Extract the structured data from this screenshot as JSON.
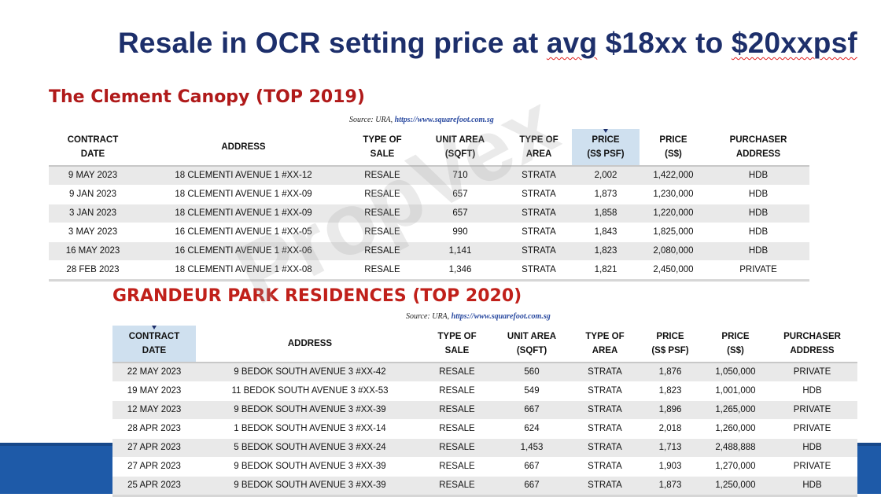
{
  "slide": {
    "title_parts": [
      "Resale in OCR setting price at ",
      "avg",
      " $18xx to ",
      "$20xxpsf"
    ],
    "watermark": "PropVex"
  },
  "colors": {
    "title": "#1d2f6b",
    "heading_red": "#b01a1a",
    "band": "#1e5aa8",
    "header_highlight": "#cfe0ef"
  },
  "clement": {
    "heading": "The Clement Canopy (TOP 2019)",
    "source_label": "Source: URA,",
    "source_link": "https://www.squarefoot.com.sg",
    "headers": [
      [
        "CONTRACT",
        "DATE"
      ],
      [
        "ADDRESS"
      ],
      [
        "TYPE OF",
        "SALE"
      ],
      [
        "UNIT AREA",
        "(SQFT)"
      ],
      [
        "TYPE OF",
        "AREA"
      ],
      [
        "PRICE",
        "(S$ PSF)"
      ],
      [
        "PRICE",
        "(S$)"
      ],
      [
        "PURCHASER",
        "ADDRESS"
      ]
    ],
    "rows": [
      [
        "9 MAY 2023",
        "18 CLEMENTI AVENUE 1 #XX-12",
        "RESALE",
        "710",
        "STRATA",
        "2,002",
        "1,422,000",
        "HDB"
      ],
      [
        "9 JAN 2023",
        "18 CLEMENTI AVENUE 1 #XX-09",
        "RESALE",
        "657",
        "STRATA",
        "1,873",
        "1,230,000",
        "HDB"
      ],
      [
        "3 JAN 2023",
        "18 CLEMENTI AVENUE 1 #XX-09",
        "RESALE",
        "657",
        "STRATA",
        "1,858",
        "1,220,000",
        "HDB"
      ],
      [
        "3 MAY 2023",
        "16 CLEMENTI AVENUE 1 #XX-05",
        "RESALE",
        "990",
        "STRATA",
        "1,843",
        "1,825,000",
        "HDB"
      ],
      [
        "16 MAY 2023",
        "16 CLEMENTI AVENUE 1 #XX-06",
        "RESALE",
        "1,141",
        "STRATA",
        "1,823",
        "2,080,000",
        "HDB"
      ],
      [
        "28 FEB 2023",
        "18 CLEMENTI AVENUE 1 #XX-08",
        "RESALE",
        "1,346",
        "STRATA",
        "1,821",
        "2,450,000",
        "PRIVATE"
      ]
    ]
  },
  "grandeur": {
    "heading": "GRANDEUR PARK RESIDENCES (TOP 2020)",
    "source_label": "Source: URA,",
    "source_link": "https://www.squarefoot.com.sg",
    "headers": [
      [
        "CONTRACT",
        "DATE"
      ],
      [
        "ADDRESS"
      ],
      [
        "TYPE OF",
        "SALE"
      ],
      [
        "UNIT AREA",
        "(SQFT)"
      ],
      [
        "TYPE OF",
        "AREA"
      ],
      [
        "PRICE",
        "(S$ PSF)"
      ],
      [
        "PRICE",
        "(S$)"
      ],
      [
        "PURCHASER",
        "ADDRESS"
      ]
    ],
    "rows": [
      [
        "22 MAY 2023",
        "9 BEDOK SOUTH AVENUE 3 #XX-42",
        "RESALE",
        "560",
        "STRATA",
        "1,876",
        "1,050,000",
        "PRIVATE"
      ],
      [
        "19 MAY 2023",
        "11 BEDOK SOUTH AVENUE 3 #XX-53",
        "RESALE",
        "549",
        "STRATA",
        "1,823",
        "1,001,000",
        "HDB"
      ],
      [
        "12 MAY 2023",
        "9 BEDOK SOUTH AVENUE 3 #XX-39",
        "RESALE",
        "667",
        "STRATA",
        "1,896",
        "1,265,000",
        "PRIVATE"
      ],
      [
        "28 APR 2023",
        "1 BEDOK SOUTH AVENUE 3 #XX-14",
        "RESALE",
        "624",
        "STRATA",
        "2,018",
        "1,260,000",
        "PRIVATE"
      ],
      [
        "27 APR 2023",
        "5 BEDOK SOUTH AVENUE 3 #XX-24",
        "RESALE",
        "1,453",
        "STRATA",
        "1,713",
        "2,488,888",
        "HDB"
      ],
      [
        "27 APR 2023",
        "9 BEDOK SOUTH AVENUE 3 #XX-39",
        "RESALE",
        "667",
        "STRATA",
        "1,903",
        "1,270,000",
        "PRIVATE"
      ],
      [
        "25 APR 2023",
        "9 BEDOK SOUTH AVENUE 3 #XX-39",
        "RESALE",
        "667",
        "STRATA",
        "1,873",
        "1,250,000",
        "HDB"
      ]
    ]
  }
}
